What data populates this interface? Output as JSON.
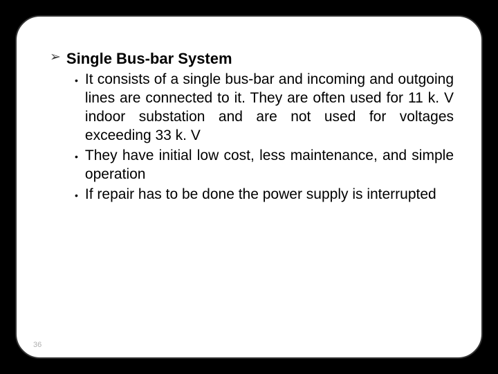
{
  "slide": {
    "background_color": "#000000",
    "panel_color": "#ffffff",
    "border_color": "#333333",
    "border_radius": 36,
    "heading_bullet": "➢",
    "heading": "Single Bus-bar System",
    "heading_fontsize": 22,
    "heading_color": "#000000",
    "item_bullet": "•",
    "item_fontsize": 21,
    "item_color": "#000000",
    "items": [
      "It consists of a single bus-bar and incoming and outgoing  lines are connected to it. They are often used for 11 k. V indoor substation and are not used for voltages exceeding 33 k. V",
      "They have initial low cost, less maintenance, and simple operation",
      "If repair has to be done the power supply is interrupted"
    ],
    "page_number": "36",
    "page_number_color": "#b0b0b0"
  }
}
